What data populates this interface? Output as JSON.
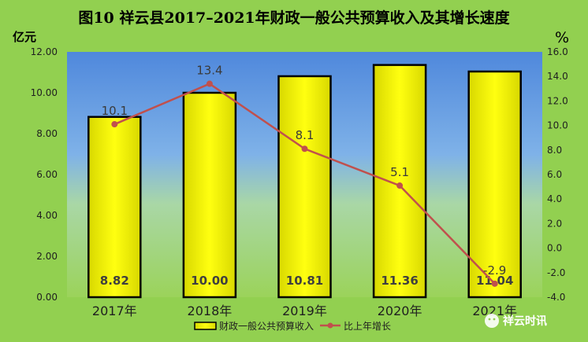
{
  "title": "图10  祥云县2017–2021年财政一般公共预算收入及其增长速度",
  "left_unit": "亿元",
  "right_unit": "%",
  "watermark": "祥云时讯",
  "chart_data": {
    "type": "bar",
    "categories": [
      "2017年",
      "2018年",
      "2019年",
      "2020年",
      "2021年"
    ],
    "series": [
      {
        "name": "财政一般公共预算收入",
        "type": "bar",
        "axis": "left",
        "values": [
          8.82,
          10.0,
          10.81,
          11.36,
          11.04
        ],
        "labels": [
          "8.82",
          "10.00",
          "10.81",
          "11.36",
          "11.04"
        ]
      },
      {
        "name": "比上年增长",
        "type": "line",
        "axis": "right",
        "values": [
          10.1,
          13.4,
          8.1,
          5.1,
          -2.9
        ],
        "labels": [
          "10.1",
          "13.4",
          "8.1",
          "5.1",
          "-2.9"
        ]
      }
    ],
    "ylim_left": [
      0,
      12
    ],
    "ylim_right": [
      -4,
      16
    ],
    "yticks_left": [
      "0.00",
      "2.00",
      "4.00",
      "6.00",
      "8.00",
      "10.00",
      "12.00"
    ],
    "yticks_right": [
      "-4.0",
      "-2.0",
      "0.0",
      "2.0",
      "4.0",
      "6.0",
      "8.0",
      "10.0",
      "12.0",
      "14.0",
      "16.0"
    ],
    "legend_position": "bottom",
    "colors": {
      "bar_fill": "#ffff00",
      "line": "#c0504d"
    }
  }
}
